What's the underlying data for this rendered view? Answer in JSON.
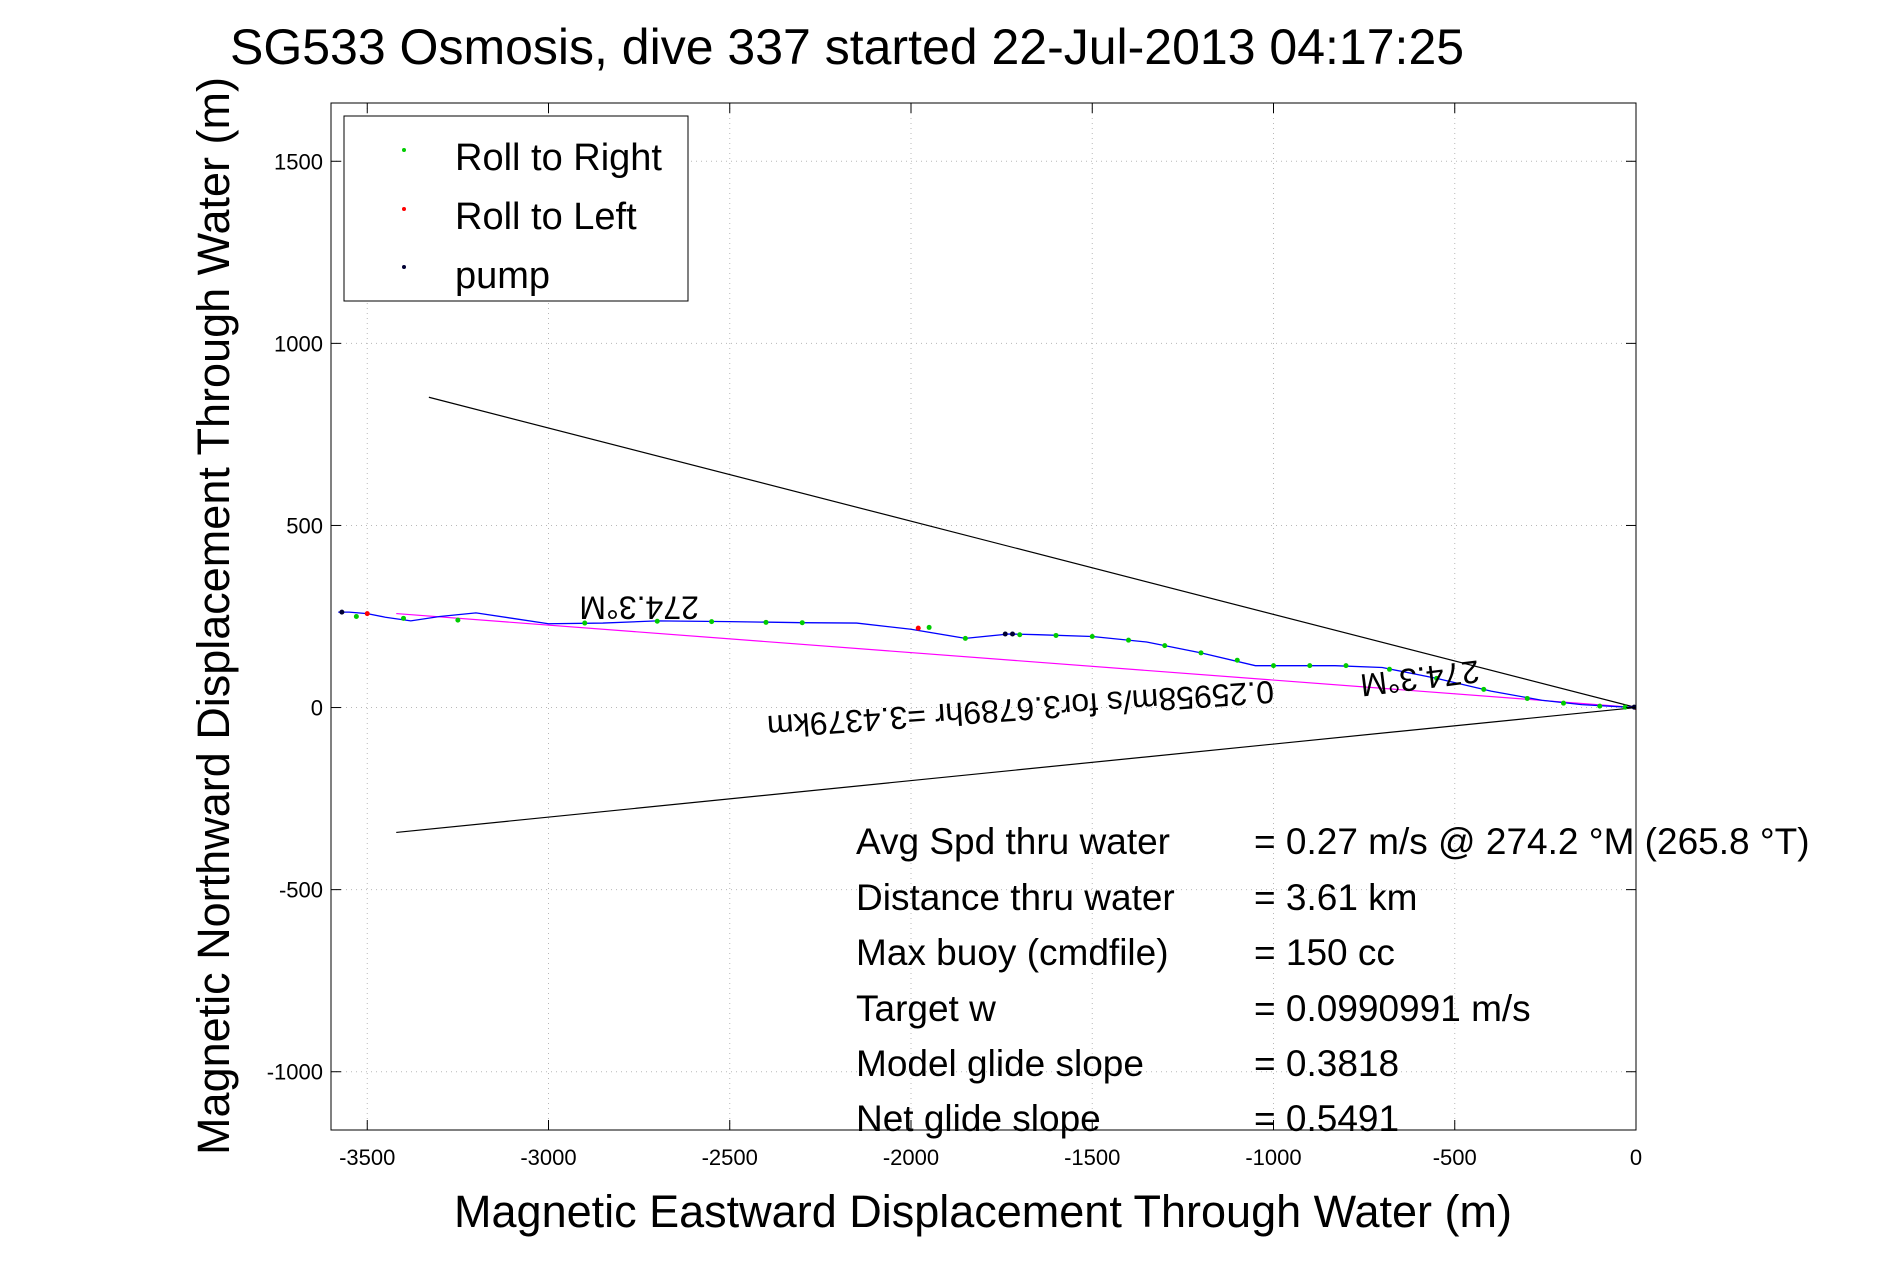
{
  "chart_data": {
    "type": "scatter",
    "title": "SG533 Osmosis, dive 337 started 22-Jul-2013 04:17:25",
    "xlabel": "Magnetic Eastward Displacement Through Water (m)",
    "ylabel": "Magnetic Northward Displacement Through Water (m)",
    "xlim": [
      -3600,
      0
    ],
    "ylim": [
      -1160,
      1660
    ],
    "xticks": [
      -3500,
      -3000,
      -2500,
      -2000,
      -1500,
      -1000,
      -500,
      0
    ],
    "yticks": [
      -1000,
      -500,
      0,
      500,
      1000,
      1500
    ],
    "grid": true,
    "legend_position": "top-left",
    "legend": [
      {
        "label": "Roll to Right",
        "color": "#00cc00"
      },
      {
        "label": "Roll to Left",
        "color": "#ff0000"
      },
      {
        "label": "pump",
        "color": "#000033"
      }
    ],
    "series": [
      {
        "name": "track",
        "color": "#0000ff",
        "x": [
          0,
          -60,
          -150,
          -260,
          -400,
          -550,
          -700,
          -830,
          -950,
          -1050,
          -1200,
          -1350,
          -1500,
          -1650,
          -1730,
          -1850,
          -2000,
          -2150,
          -2300,
          -2500,
          -2700,
          -2850,
          -3000,
          -3100,
          -3200,
          -3300,
          -3380,
          -3450,
          -3500,
          -3550,
          -3580
        ],
        "y": [
          0,
          3,
          8,
          20,
          45,
          80,
          110,
          115,
          115,
          115,
          150,
          180,
          195,
          200,
          202,
          190,
          215,
          232,
          233,
          236,
          238,
          232,
          230,
          245,
          260,
          250,
          238,
          248,
          258,
          262,
          262
        ]
      },
      {
        "name": "Roll to Right",
        "color": "#00cc00",
        "x": [
          -30,
          -100,
          -200,
          -300,
          -420,
          -550,
          -680,
          -800,
          -900,
          -1000,
          -1100,
          -1200,
          -1300,
          -1400,
          -1500,
          -1600,
          -1700,
          -1850,
          -1950,
          -2300,
          -2400,
          -2550,
          -2700,
          -2900,
          -3250,
          -3400,
          -3530
        ],
        "y": [
          1,
          4,
          12,
          25,
          50,
          80,
          105,
          115,
          115,
          115,
          130,
          150,
          170,
          185,
          195,
          198,
          200,
          190,
          220,
          233,
          234,
          236,
          237,
          232,
          240,
          245,
          250
        ]
      },
      {
        "name": "Roll to Left",
        "color": "#ff0000",
        "x": [
          0,
          -1980,
          -3500
        ],
        "y": [
          0,
          218,
          258
        ]
      },
      {
        "name": "pump",
        "color": "#000033",
        "x": [
          -5,
          -1720,
          -1740,
          -3570
        ],
        "y": [
          1,
          202,
          202,
          262
        ]
      }
    ],
    "lines": [
      {
        "color": "#000000",
        "x": [
          0,
          -3330
        ],
        "y": [
          0,
          852
        ]
      },
      {
        "color": "#000000",
        "x": [
          0,
          -3420
        ],
        "y": [
          0,
          -343
        ]
      },
      {
        "color": "#ff00ff",
        "x": [
          0,
          -3420
        ],
        "y": [
          0,
          258
        ]
      }
    ],
    "annotations": [
      {
        "text": "274.3°M",
        "x": -2750,
        "y": 305,
        "rotation": 180
      },
      {
        "text": "274.3°M",
        "x": -600,
        "y": 110,
        "rotation": 173
      },
      {
        "text": "0.25958m/s for3.6789hr =3.4379km",
        "x": -1700,
        "y": 25,
        "rotation": 176
      }
    ],
    "stats": [
      {
        "label": "Avg Spd thru water",
        "value": "=  0.27 m/s @ 274.2 °M (265.8 °T)"
      },
      {
        "label": "Distance thru water",
        "value": "=  3.61 km"
      },
      {
        "label": "Max buoy (cmdfile)",
        "value": "= 150 cc"
      },
      {
        "label": "Target w",
        "value": "= 0.0990991 m/s"
      },
      {
        "label": "Model glide slope",
        "value": "= 0.3818"
      },
      {
        "label": "Net glide slope",
        "value": "= 0.5491"
      }
    ]
  }
}
